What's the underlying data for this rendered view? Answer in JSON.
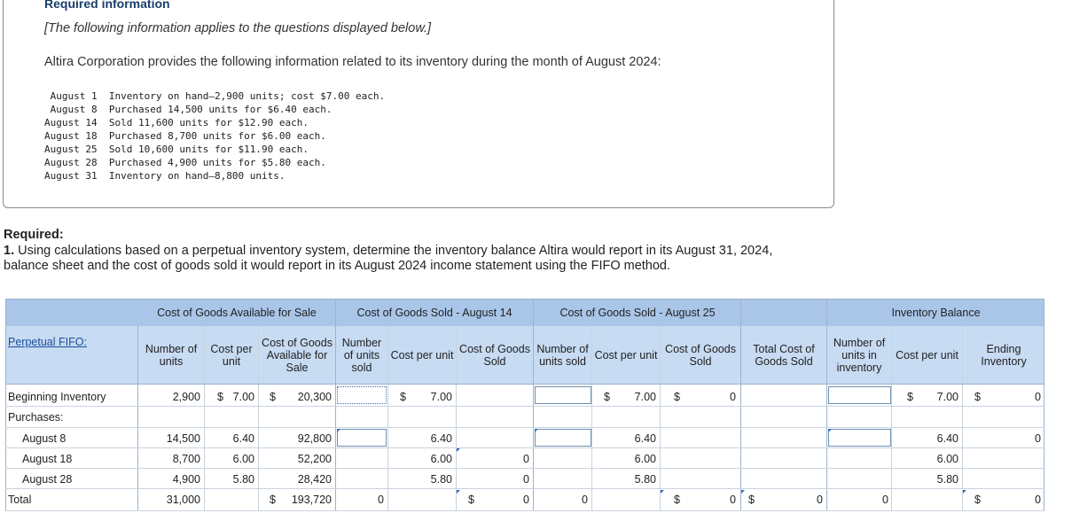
{
  "info": {
    "title": "Required information",
    "note": "[The following information applies to the questions displayed below.]",
    "intro": "Altira Corporation provides the following information related to its inventory during the month of August 2024:",
    "lines": [
      " August 1  Inventory on hand—2,900 units; cost $7.00 each.",
      " August 8  Purchased 14,500 units for $6.40 each.",
      "August 14  Sold 11,600 units for $12.90 each.",
      "August 18  Purchased 8,700 units for $6.00 each.",
      "August 25  Sold 10,600 units for $11.90 each.",
      "August 28  Purchased 4,900 units for $5.80 each.",
      "August 31  Inventory on hand—8,800 units."
    ]
  },
  "required": {
    "heading": "Required:",
    "number": "1.",
    "text": " Using calculations based on a perpetual inventory system, determine the inventory balance Altira would report in its August 31, 2024, balance sheet and the cost of goods sold it would report in its August 2024 income statement using the FIFO method."
  },
  "table": {
    "label": "Perpetual FIFO:",
    "groups": {
      "available": "Cost of Goods Available for Sale",
      "aug14": "Cost of Goods Sold - August 14",
      "aug25": "Cost of Goods Sold - August 25",
      "balance": "Inventory Balance"
    },
    "headers": {
      "avail_units": "Number of units",
      "avail_cost": "Cost per unit",
      "avail_total": "Cost of Goods Available for Sale",
      "s14_units": "Number of units sold",
      "s14_cost": "Cost per unit",
      "s14_cogs": "Cost of Goods Sold",
      "s25_units": "Number of units sold",
      "s25_cost": "Cost per unit",
      "s25_cogs": "Cost of Goods Sold",
      "total_cogs": "Total Cost of Goods Sold",
      "bal_units": "Number of units in inventory",
      "bal_cost": "Cost per unit",
      "bal_ending": "Ending Inventory"
    },
    "rows": {
      "beginning": {
        "label": "Beginning Inventory",
        "units": "2,900",
        "cost": "7.00",
        "total": "20,300",
        "s14_cost": "7.00",
        "s25_cost": "7.00",
        "s25_cogs": "0",
        "bal_cost": "7.00",
        "bal_end": "0"
      },
      "purchases": {
        "label": "Purchases:"
      },
      "aug8": {
        "label": "August 8",
        "units": "14,500",
        "cost": "6.40",
        "total": "92,800",
        "s14_cost": "6.40",
        "s25_cost": "6.40",
        "bal_cost": "6.40",
        "bal_end": "0"
      },
      "aug18": {
        "label": "August 18",
        "units": "8,700",
        "cost": "6.00",
        "total": "52,200",
        "s14_cost": "6.00",
        "s14_cogs": "0",
        "s25_cost": "6.00",
        "bal_cost": "6.00"
      },
      "aug28": {
        "label": "August 28",
        "units": "4,900",
        "cost": "5.80",
        "total": "28,420",
        "s14_cost": "5.80",
        "s14_cogs": "0",
        "s25_cost": "5.80",
        "bal_cost": "5.80"
      },
      "total": {
        "label": "Total",
        "units": "31,000",
        "total": "193,720",
        "s14_units": "0",
        "s14_cogs": "0",
        "s25_units": "0",
        "s25_cogs": "0",
        "total_cogs": "0",
        "bal_units": "0",
        "bal_end": "0"
      }
    },
    "currency": "$"
  }
}
